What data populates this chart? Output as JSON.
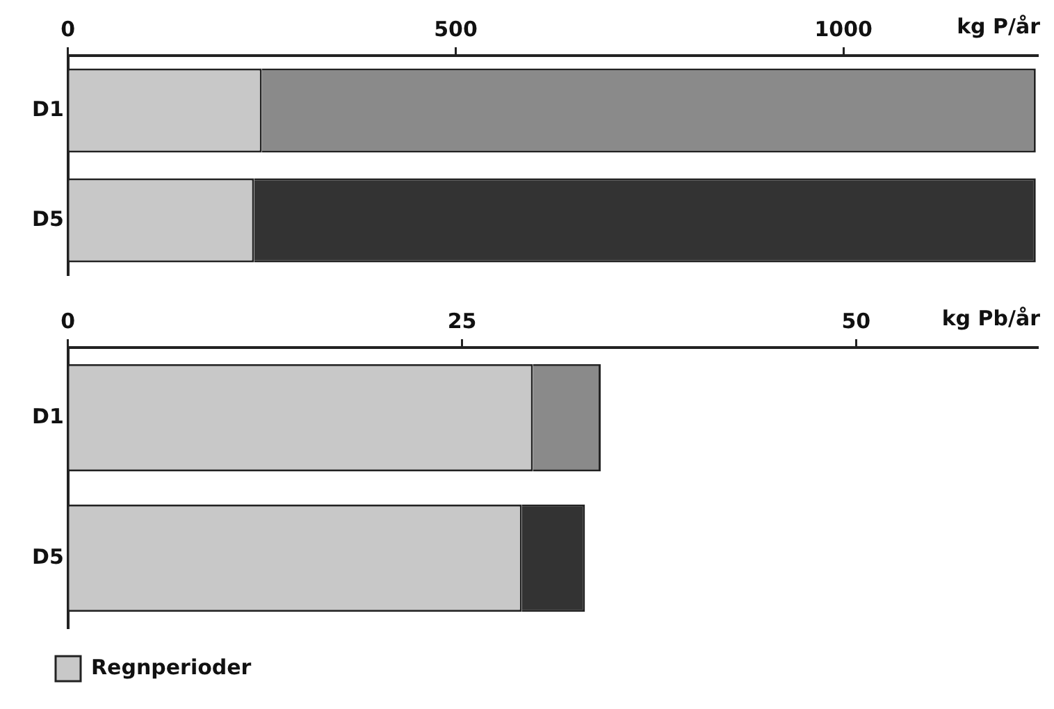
{
  "chart_data": [
    {
      "type": "bar",
      "orientation": "horizontal",
      "stacked": true,
      "categories": [
        "D1",
        "D5"
      ],
      "series": [
        {
          "color": "#c8c8c8",
          "values": [
            250,
            240
          ]
        },
        {
          "colors": [
            "#8a8a8a",
            "#333333"
          ],
          "values": [
            998,
            1008
          ]
        }
      ],
      "xlim": [
        0,
        1250
      ],
      "xticks": [
        0,
        500,
        1000
      ],
      "xlabel": "kg P/år",
      "grid": false,
      "legend": false
    },
    {
      "type": "bar",
      "orientation": "horizontal",
      "stacked": true,
      "categories": [
        "D1",
        "D5"
      ],
      "series": [
        {
          "name": "Regnperioder",
          "color": "#c8c8c8",
          "values": [
            29.5,
            28.8
          ]
        },
        {
          "colors": [
            "#8a8a8a",
            "#333333"
          ],
          "values": [
            4.3,
            4.0
          ]
        }
      ],
      "xlim": [
        0,
        61.5
      ],
      "xticks": [
        0,
        25,
        50
      ],
      "xlabel": "kg Pb/år",
      "grid": false,
      "legend": "bottom left"
    }
  ]
}
